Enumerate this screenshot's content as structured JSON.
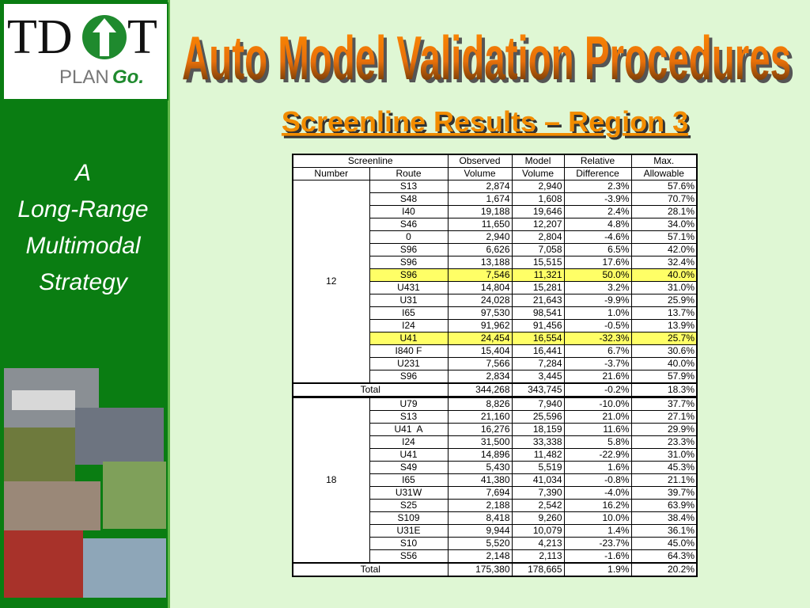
{
  "logo": {
    "left": "TD",
    "right": "T",
    "plan": "PLAN",
    "go": "Go."
  },
  "sidebar": {
    "lines": [
      "A",
      "Long-Range",
      "Multimodal",
      "Strategy"
    ]
  },
  "header": {
    "title": "Auto Model Validation Procedures",
    "subtitle": "Screenline Results – Region 3"
  },
  "table": {
    "header_top": [
      "Screenline",
      "Observed",
      "Model",
      "Relative",
      "Max."
    ],
    "header_bottom": [
      "Number",
      "Route",
      "Volume",
      "Volume",
      "Difference",
      "Allowable"
    ],
    "groups": [
      {
        "number": "12",
        "rows": [
          {
            "cells": [
              "S13",
              "2,874",
              "2,940",
              "2.3%",
              "57.6%"
            ]
          },
          {
            "cells": [
              "S48",
              "1,674",
              "1,608",
              "-3.9%",
              "70.7%"
            ]
          },
          {
            "cells": [
              "I40",
              "19,188",
              "19,646",
              "2.4%",
              "28.1%"
            ]
          },
          {
            "cells": [
              "S46",
              "11,650",
              "12,207",
              "4.8%",
              "34.0%"
            ]
          },
          {
            "cells": [
              "0",
              "2,940",
              "2,804",
              "-4.6%",
              "57.1%"
            ]
          },
          {
            "cells": [
              "S96",
              "6,626",
              "7,058",
              "6.5%",
              "42.0%"
            ]
          },
          {
            "cells": [
              "S96",
              "13,188",
              "15,515",
              "17.6%",
              "32.4%"
            ]
          },
          {
            "cells": [
              "S96",
              "7,546",
              "11,321",
              "50.0%",
              "40.0%"
            ],
            "highlight": true
          },
          {
            "cells": [
              "U431",
              "14,804",
              "15,281",
              "3.2%",
              "31.0%"
            ]
          },
          {
            "cells": [
              "U31",
              "24,028",
              "21,643",
              "-9.9%",
              "25.9%"
            ]
          },
          {
            "cells": [
              "I65",
              "97,530",
              "98,541",
              "1.0%",
              "13.7%"
            ]
          },
          {
            "cells": [
              "I24",
              "91,962",
              "91,456",
              "-0.5%",
              "13.9%"
            ]
          },
          {
            "cells": [
              "U41",
              "24,454",
              "16,554",
              "-32.3%",
              "25.7%"
            ],
            "highlight": true
          },
          {
            "cells": [
              "I840 F",
              "15,404",
              "16,441",
              "6.7%",
              "30.6%"
            ]
          },
          {
            "cells": [
              "U231",
              "7,566",
              "7,284",
              "-3.7%",
              "40.0%"
            ]
          },
          {
            "cells": [
              "S96",
              "2,834",
              "3,445",
              "21.6%",
              "57.9%"
            ]
          }
        ],
        "total": {
          "label": "Total",
          "cells": [
            "344,268",
            "343,745",
            "-0.2%",
            "18.3%"
          ]
        }
      },
      {
        "number": "18",
        "rows": [
          {
            "cells": [
              "U79",
              "8,826",
              "7,940",
              "-10.0%",
              "37.7%"
            ]
          },
          {
            "cells": [
              "S13",
              "21,160",
              "25,596",
              "21.0%",
              "27.1%"
            ]
          },
          {
            "cells": [
              "U41  A",
              "16,276",
              "18,159",
              "11.6%",
              "29.9%"
            ]
          },
          {
            "cells": [
              "I24",
              "31,500",
              "33,338",
              "5.8%",
              "23.3%"
            ]
          },
          {
            "cells": [
              "U41",
              "14,896",
              "11,482",
              "-22.9%",
              "31.0%"
            ]
          },
          {
            "cells": [
              "S49",
              "5,430",
              "5,519",
              "1.6%",
              "45.3%"
            ]
          },
          {
            "cells": [
              "I65",
              "41,380",
              "41,034",
              "-0.8%",
              "21.1%"
            ]
          },
          {
            "cells": [
              "U31W",
              "7,694",
              "7,390",
              "-4.0%",
              "39.7%"
            ]
          },
          {
            "cells": [
              "S25",
              "2,188",
              "2,542",
              "16.2%",
              "63.9%"
            ]
          },
          {
            "cells": [
              "S109",
              "8,418",
              "9,260",
              "10.0%",
              "38.4%"
            ]
          },
          {
            "cells": [
              "U31E",
              "9,944",
              "10,079",
              "1.4%",
              "36.1%"
            ]
          },
          {
            "cells": [
              "S10",
              "5,520",
              "4,213",
              "-23.7%",
              "45.0%"
            ]
          },
          {
            "cells": [
              "S56",
              "2,148",
              "2,113",
              "-1.6%",
              "64.3%"
            ]
          }
        ],
        "total": {
          "label": "Total",
          "cells": [
            "175,380",
            "178,665",
            "1.9%",
            "20.2%"
          ]
        }
      }
    ]
  }
}
